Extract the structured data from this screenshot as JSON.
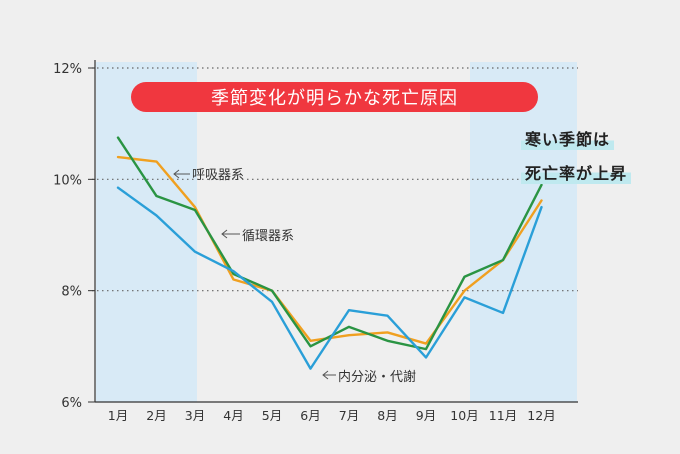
{
  "chart_data": {
    "type": "line",
    "title": "季節変化が明らかな死亡原因",
    "categories": [
      "1月",
      "2月",
      "3月",
      "4月",
      "5月",
      "6月",
      "7月",
      "8月",
      "9月",
      "10月",
      "11月",
      "12月"
    ],
    "y_ticks": [
      "6%",
      "8%",
      "10%",
      "12%"
    ],
    "ylim": [
      6,
      12
    ],
    "grid": "dotted horizontal lines at 8%, 10%, 12%",
    "highlight_periods": [
      "1月-3月",
      "10月-12月"
    ],
    "highlight_color": "#d8eaf6",
    "series": [
      {
        "name": "呼吸器系",
        "color": "#f0a020",
        "values": [
          10.4,
          10.32,
          9.5,
          8.2,
          8.0,
          7.1,
          7.2,
          7.25,
          7.05,
          8.0,
          8.55,
          9.62
        ]
      },
      {
        "name": "循環器系",
        "color": "#2a9443",
        "values": [
          10.75,
          9.7,
          9.45,
          8.3,
          8.0,
          7.0,
          7.35,
          7.1,
          6.95,
          8.25,
          8.55,
          9.9
        ]
      },
      {
        "name": "内分泌・代謝",
        "color": "#2a9fd8",
        "values": [
          9.85,
          9.35,
          8.7,
          8.35,
          7.8,
          6.6,
          7.65,
          7.55,
          6.8,
          7.88,
          7.6,
          9.5
        ]
      }
    ],
    "annotations": [
      "寒い季節は",
      "死亡率が上昇"
    ]
  }
}
